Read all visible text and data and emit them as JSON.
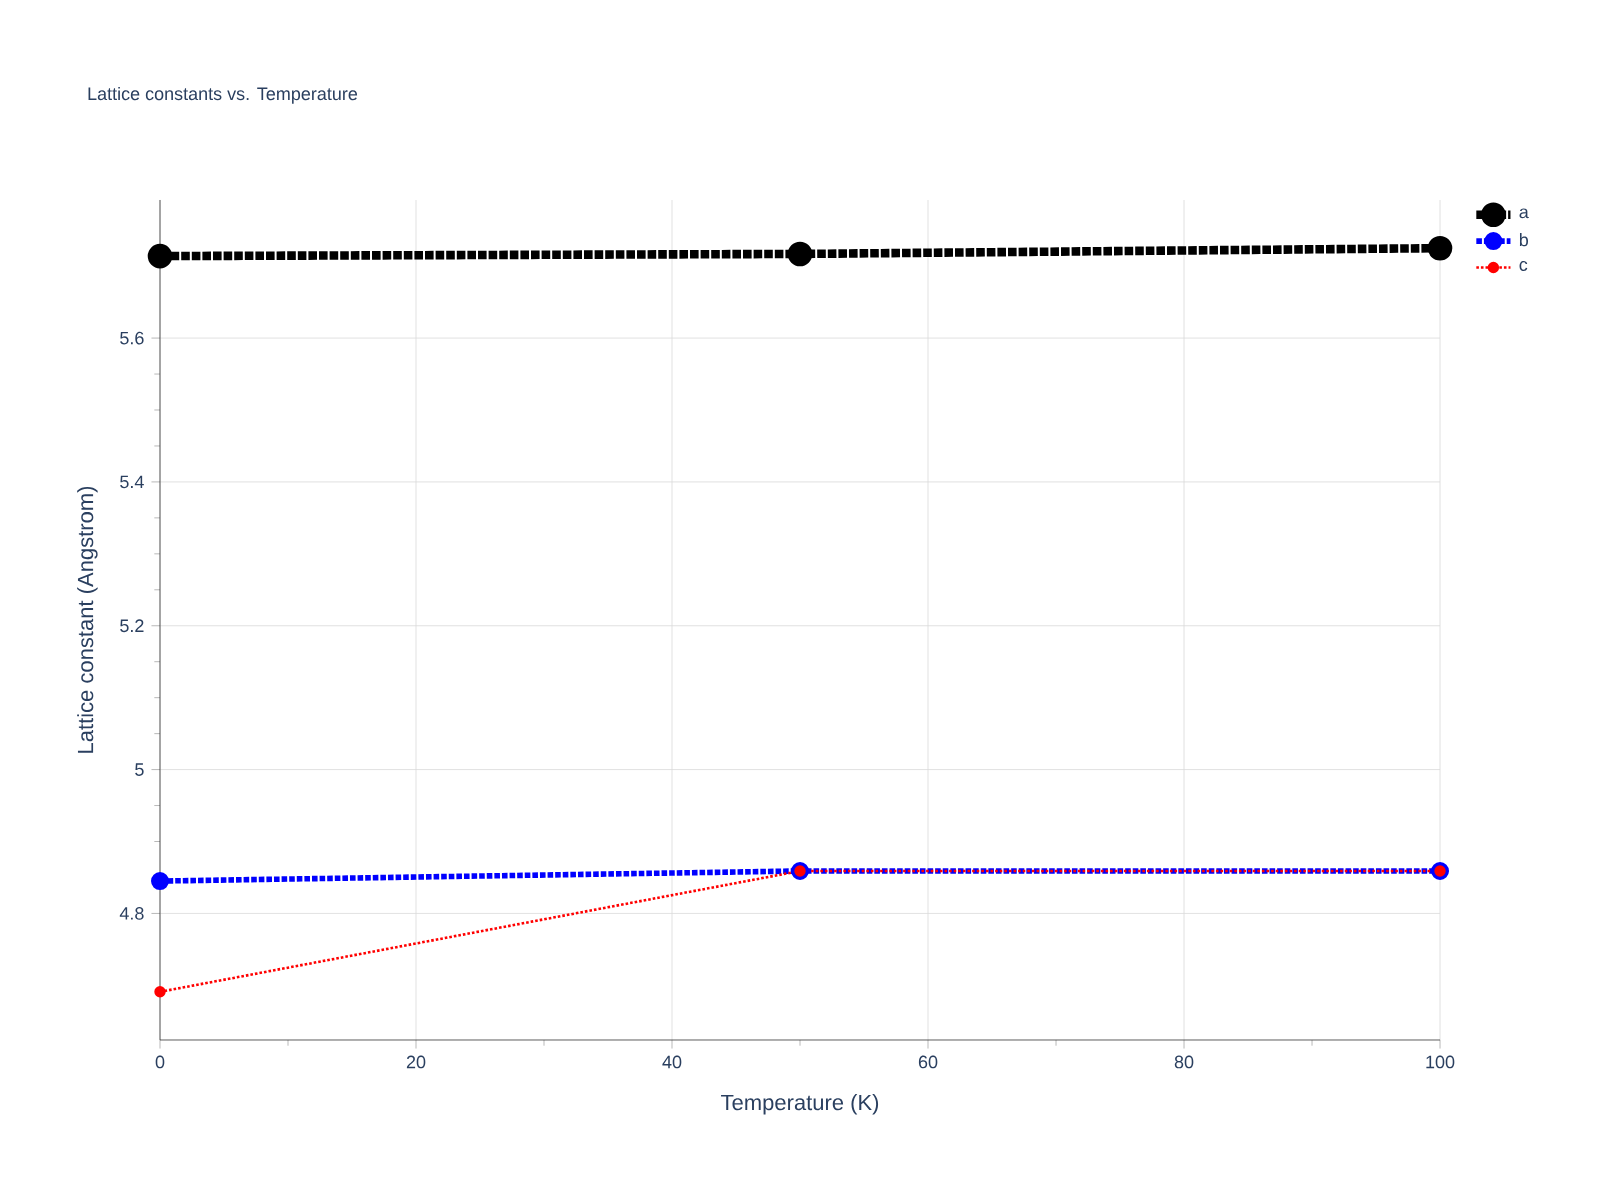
{
  "chart_data": {
    "type": "line",
    "title": "Lattice constants vs. Temperature",
    "xlabel": "Temperature (K)",
    "ylabel": "Lattice constant (Angstrom)",
    "x": [
      0,
      50,
      100
    ],
    "series": [
      {
        "name": "a",
        "color": "#000000",
        "values": [
          5.714,
          5.717,
          5.725
        ]
      },
      {
        "name": "b",
        "color": "#0000ff",
        "values": [
          4.845,
          4.859,
          4.859
        ]
      },
      {
        "name": "c",
        "color": "#ff0000",
        "values": [
          4.691,
          4.859,
          4.859
        ]
      }
    ],
    "xlim": [
      0,
      100
    ],
    "xticks": [
      0,
      20,
      40,
      60,
      80,
      100
    ],
    "ylim": [
      4.624,
      5.792
    ],
    "yticks": [
      4.8,
      5,
      5.2,
      5.4,
      5.6
    ],
    "grid": true,
    "legend": "top right",
    "marker": "circle",
    "line_style": "dotted"
  }
}
